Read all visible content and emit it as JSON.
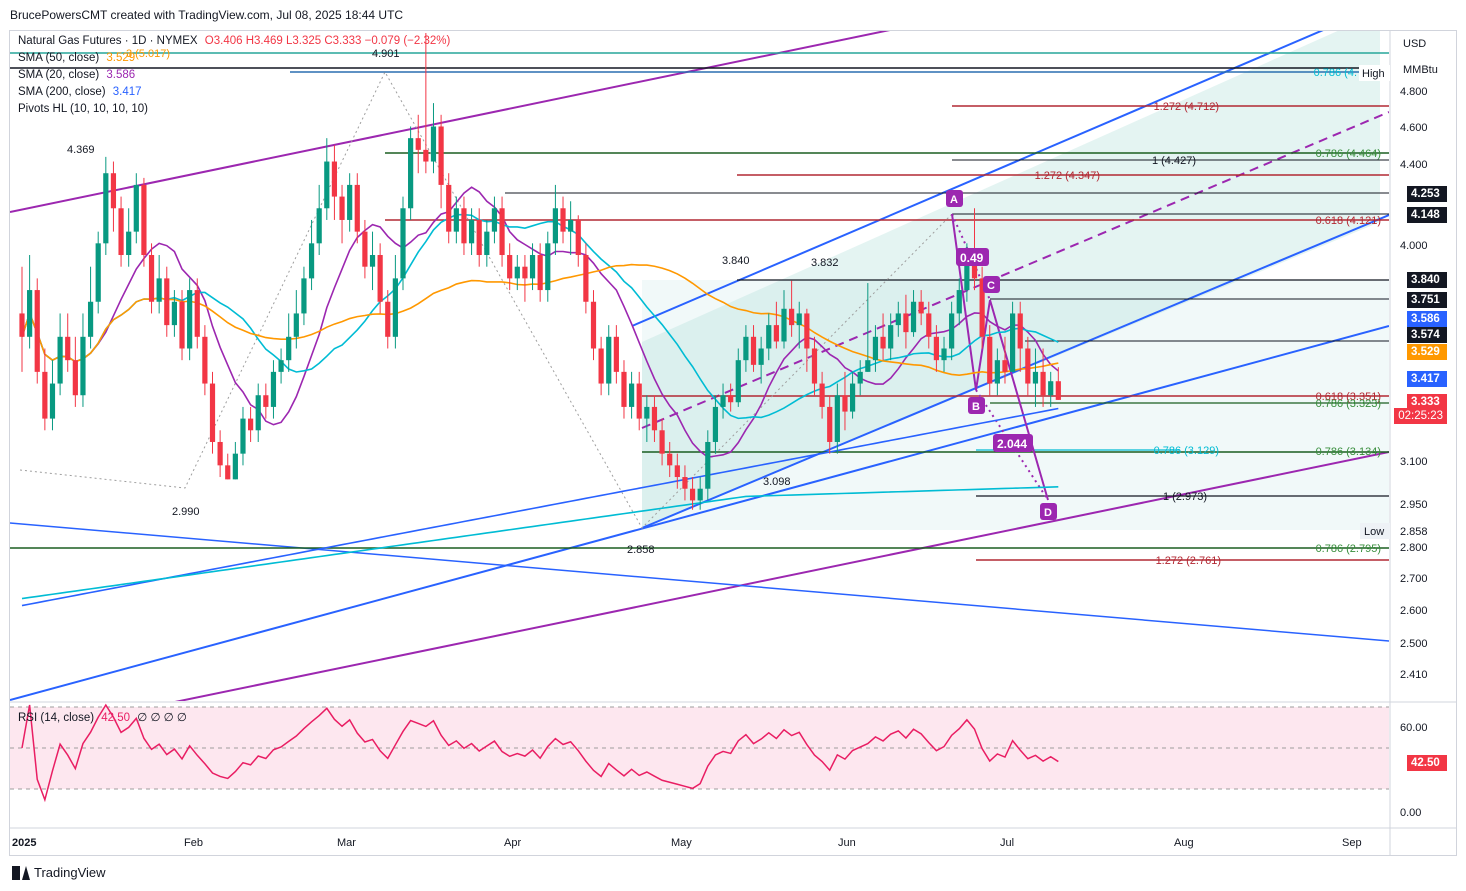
{
  "header": {
    "caption": "BrucePowersCMT created with TradingView.com, Jul 08, 2025 18:44 UTC"
  },
  "legend": {
    "title": "Natural Gas Futures · 1D · NYMEX",
    "ohlc": "O3.406  H3.469  L3.325  C3.333  −0.079 (−2.32%)",
    "sma50_label": "SMA (50, close)",
    "sma50_value": "3.529",
    "sma20_label": "SMA (20, close)",
    "sma20_value": "3.586",
    "sma200_label": "SMA (200, close)",
    "sma200_value": "3.417",
    "pivots_label": "Pivots HL (10, 10, 10, 10)",
    "rsi_label": "RSI (14, close)",
    "rsi_value": "42.50",
    "rsi_extras": "∅ ∅ ∅ ∅"
  },
  "axis": {
    "currency": "USD",
    "unit": "MMBtu",
    "price_ticks": [
      "4.800",
      "4.600",
      "4.400",
      "4.000",
      "3.100",
      "2.950",
      "2.800",
      "2.700",
      "2.600",
      "2.500",
      "2.410"
    ],
    "rsi_ticks": [
      "60.00",
      "0.00"
    ],
    "months": [
      "2025",
      "Feb",
      "Mar",
      "Apr",
      "May",
      "Jun",
      "Jul",
      "Aug",
      "Sep"
    ]
  },
  "tags": [
    {
      "text": "4.253",
      "bg": "#131722"
    },
    {
      "text": "4.148",
      "bg": "#131722"
    },
    {
      "text": "3.840",
      "bg": "#131722"
    },
    {
      "text": "3.751",
      "bg": "#131722"
    },
    {
      "text": "3.586",
      "bg": "#2962ff"
    },
    {
      "text": "3.574",
      "bg": "#131722"
    },
    {
      "text": "3.529",
      "bg": "#ff9800"
    },
    {
      "text": "3.417",
      "bg": "#2962ff"
    },
    {
      "text": "3.333",
      "bg": "#f23645"
    },
    {
      "text": "02:25:23",
      "bg": "#f23645"
    },
    {
      "text": "42.50",
      "bg": "#f23645"
    }
  ],
  "labels": {
    "high_tag": "High",
    "low_tag": "Low",
    "low_value": "2.858",
    "peak_mar": "4.901",
    "peak_jan": "4.369",
    "low_feb": "2.990",
    "low_apr": "2.858",
    "peak_may": "3.840",
    "peak_jun": "3.832",
    "low_may": "3.098",
    "point_a": "A",
    "point_b": "B",
    "point_c": "C",
    "point_d": "D",
    "ratio_bc": "0.49",
    "ratio_cd": "2.044"
  },
  "fib_levels": [
    {
      "text": "1.272 (4.712)",
      "color": "#b22833"
    },
    {
      "text": "0.786 (4.464)",
      "color": "#388e3c"
    },
    {
      "text": "1 (4.427)",
      "color": "#131722"
    },
    {
      "text": "1.272 (4.347)",
      "color": "#b22833"
    },
    {
      "text": "0.618 (4.121)",
      "color": "#b22833"
    },
    {
      "text": "0.618 (3.351)",
      "color": "#b22833"
    },
    {
      "text": "0.786 (3.323)",
      "color": "#388e3c"
    },
    {
      "text": "0.786 (3.129)",
      "color": "#00bcd4"
    },
    {
      "text": "0.786 (3.134)",
      "color": "#388e3c"
    },
    {
      "text": "1 (2.973)",
      "color": "#131722"
    },
    {
      "text": "0.786 (2.795)",
      "color": "#388e3c"
    },
    {
      "text": "1.272 (2.761)",
      "color": "#b22833"
    },
    {
      "text": "0.786 (4.",
      "color": "#00bcd4"
    },
    {
      "text": "3 (5.017)",
      "color": "#ff9800"
    }
  ],
  "colors": {
    "up": "#089981",
    "down": "#f23645",
    "sma20": "#00bcd4",
    "sma50": "#ff9800",
    "sma200": "#2962ff",
    "pivot": "#9c27b0",
    "channel": "#2962ff",
    "rsi": "#e91e63"
  },
  "chart_data": {
    "type": "candlestick",
    "symbol": "Natural Gas Futures · 1D · NYMEX",
    "ohlc_last": {
      "open": 3.406,
      "high": 3.469,
      "low": 3.325,
      "close": 3.333,
      "change": -0.079,
      "change_pct": -2.32
    },
    "x_range": [
      "2025-01-02",
      "2025-09-30"
    ],
    "y_range": [
      2.41,
      5.0
    ],
    "candles": [
      [
        3.7,
        3.6,
        3.9,
        3.45
      ],
      [
        3.6,
        3.8,
        3.95,
        3.55
      ],
      [
        3.8,
        3.45,
        3.85,
        3.4
      ],
      [
        3.45,
        3.25,
        3.55,
        3.2
      ],
      [
        3.25,
        3.4,
        3.5,
        3.2
      ],
      [
        3.4,
        3.6,
        3.7,
        3.35
      ],
      [
        3.6,
        3.5,
        3.7,
        3.45
      ],
      [
        3.5,
        3.35,
        3.6,
        3.3
      ],
      [
        3.35,
        3.6,
        3.7,
        3.3
      ],
      [
        3.6,
        3.75,
        3.9,
        3.55
      ],
      [
        3.75,
        4.0,
        4.05,
        3.7
      ],
      [
        4.0,
        4.3,
        4.37,
        3.95
      ],
      [
        4.3,
        4.15,
        4.35,
        4.05
      ],
      [
        4.15,
        3.95,
        4.2,
        3.9
      ],
      [
        3.95,
        4.05,
        4.15,
        3.9
      ],
      [
        4.05,
        4.25,
        4.3,
        4.0
      ],
      [
        4.25,
        3.95,
        4.28,
        3.9
      ],
      [
        3.95,
        3.75,
        4.0,
        3.7
      ],
      [
        3.75,
        3.85,
        3.95,
        3.7
      ],
      [
        3.85,
        3.65,
        3.9,
        3.6
      ],
      [
        3.65,
        3.75,
        3.8,
        3.6
      ],
      [
        3.75,
        3.55,
        3.8,
        3.5
      ],
      [
        3.55,
        3.8,
        3.85,
        3.5
      ],
      [
        3.8,
        3.6,
        3.85,
        3.55
      ],
      [
        3.6,
        3.4,
        3.65,
        3.35
      ],
      [
        3.4,
        3.15,
        3.45,
        3.1
      ],
      [
        3.15,
        3.05,
        3.2,
        3.0
      ],
      [
        3.05,
        2.99,
        3.1,
        2.99
      ],
      [
        2.99,
        3.1,
        3.15,
        2.99
      ],
      [
        3.1,
        3.25,
        3.3,
        3.05
      ],
      [
        3.25,
        3.2,
        3.3,
        3.15
      ],
      [
        3.2,
        3.35,
        3.4,
        3.15
      ],
      [
        3.35,
        3.3,
        3.4,
        3.25
      ],
      [
        3.3,
        3.45,
        3.5,
        3.25
      ],
      [
        3.45,
        3.5,
        3.55,
        3.4
      ],
      [
        3.5,
        3.6,
        3.7,
        3.45
      ],
      [
        3.6,
        3.7,
        3.8,
        3.55
      ],
      [
        3.7,
        3.85,
        3.9,
        3.65
      ],
      [
        3.85,
        4.0,
        4.1,
        3.8
      ],
      [
        4.0,
        4.15,
        4.25,
        3.95
      ],
      [
        4.15,
        4.35,
        4.45,
        4.1
      ],
      [
        4.35,
        4.2,
        4.42,
        4.1
      ],
      [
        4.2,
        4.1,
        4.25,
        4.0
      ],
      [
        4.1,
        4.25,
        4.3,
        4.05
      ],
      [
        4.25,
        4.05,
        4.3,
        4.0
      ],
      [
        4.05,
        3.9,
        4.1,
        3.85
      ],
      [
        3.9,
        3.95,
        4.05,
        3.8
      ],
      [
        3.95,
        3.75,
        4.0,
        3.7
      ],
      [
        3.75,
        3.6,
        3.8,
        3.55
      ],
      [
        3.6,
        3.85,
        3.95,
        3.55
      ],
      [
        3.85,
        4.15,
        4.2,
        3.8
      ],
      [
        4.15,
        4.45,
        4.5,
        4.1
      ],
      [
        4.45,
        4.4,
        4.55,
        4.3
      ],
      [
        4.4,
        4.35,
        4.9,
        4.3
      ],
      [
        4.35,
        4.5,
        4.6,
        4.3
      ],
      [
        4.5,
        4.25,
        4.55,
        4.15
      ],
      [
        4.25,
        4.05,
        4.3,
        4.0
      ],
      [
        4.05,
        4.15,
        4.2,
        4.0
      ],
      [
        4.15,
        4.0,
        4.2,
        3.95
      ],
      [
        4.0,
        4.1,
        4.15,
        3.95
      ],
      [
        4.1,
        3.95,
        4.15,
        3.9
      ],
      [
        3.95,
        4.05,
        4.1,
        3.9
      ],
      [
        4.05,
        4.15,
        4.2,
        4.0
      ],
      [
        4.15,
        3.95,
        4.2,
        3.9
      ],
      [
        3.95,
        3.85,
        4.0,
        3.8
      ],
      [
        3.85,
        3.9,
        3.95,
        3.8
      ],
      [
        3.9,
        3.85,
        3.95,
        3.75
      ],
      [
        3.85,
        3.95,
        4.0,
        3.8
      ],
      [
        3.95,
        3.8,
        4.0,
        3.75
      ],
      [
        3.8,
        4.0,
        4.05,
        3.75
      ],
      [
        4.0,
        4.15,
        4.25,
        3.95
      ],
      [
        4.15,
        4.05,
        4.2,
        4.0
      ],
      [
        4.05,
        4.1,
        4.18,
        3.95
      ],
      [
        4.1,
        3.95,
        4.12,
        3.9
      ],
      [
        3.95,
        3.75,
        4.0,
        3.7
      ],
      [
        3.75,
        3.55,
        3.8,
        3.5
      ],
      [
        3.55,
        3.4,
        3.6,
        3.35
      ],
      [
        3.4,
        3.6,
        3.65,
        3.35
      ],
      [
        3.6,
        3.45,
        3.65,
        3.4
      ],
      [
        3.45,
        3.3,
        3.5,
        3.25
      ],
      [
        3.3,
        3.4,
        3.45,
        3.25
      ],
      [
        3.4,
        3.25,
        3.45,
        3.2
      ],
      [
        3.25,
        3.3,
        3.35,
        3.15
      ],
      [
        3.3,
        3.2,
        3.35,
        3.15
      ],
      [
        3.2,
        3.1,
        3.25,
        3.05
      ],
      [
        3.1,
        3.05,
        3.15,
        3.0
      ],
      [
        3.05,
        3.0,
        3.1,
        2.95
      ],
      [
        3.0,
        2.95,
        3.05,
        2.9
      ],
      [
        2.95,
        2.9,
        3.0,
        2.86
      ],
      [
        2.9,
        2.95,
        3.0,
        2.86
      ],
      [
        2.95,
        3.15,
        3.2,
        2.9
      ],
      [
        3.15,
        3.3,
        3.35,
        3.1
      ],
      [
        3.3,
        3.35,
        3.4,
        3.25
      ],
      [
        3.35,
        3.32,
        3.4,
        3.28
      ],
      [
        3.32,
        3.5,
        3.55,
        3.3
      ],
      [
        3.5,
        3.6,
        3.65,
        3.45
      ],
      [
        3.6,
        3.48,
        3.65,
        3.45
      ],
      [
        3.48,
        3.55,
        3.6,
        3.4
      ],
      [
        3.55,
        3.65,
        3.7,
        3.5
      ],
      [
        3.65,
        3.58,
        3.75,
        3.55
      ],
      [
        3.58,
        3.72,
        3.8,
        3.55
      ],
      [
        3.72,
        3.65,
        3.84,
        3.6
      ],
      [
        3.65,
        3.7,
        3.75,
        3.55
      ],
      [
        3.7,
        3.55,
        3.72,
        3.45
      ],
      [
        3.55,
        3.4,
        3.6,
        3.35
      ],
      [
        3.4,
        3.3,
        3.45,
        3.25
      ],
      [
        3.3,
        3.15,
        3.35,
        3.1
      ],
      [
        3.15,
        3.35,
        3.4,
        3.1
      ],
      [
        3.35,
        3.28,
        3.45,
        3.2
      ],
      [
        3.28,
        3.4,
        3.45,
        3.25
      ],
      [
        3.4,
        3.45,
        3.5,
        3.35
      ],
      [
        3.45,
        3.5,
        3.83,
        3.45
      ],
      [
        3.5,
        3.6,
        3.65,
        3.45
      ],
      [
        3.6,
        3.55,
        3.7,
        3.5
      ],
      [
        3.55,
        3.65,
        3.7,
        3.5
      ],
      [
        3.65,
        3.7,
        3.75,
        3.6
      ],
      [
        3.7,
        3.62,
        3.78,
        3.55
      ],
      [
        3.62,
        3.75,
        3.8,
        3.6
      ],
      [
        3.75,
        3.7,
        3.8,
        3.65
      ],
      [
        3.7,
        3.6,
        3.75,
        3.55
      ],
      [
        3.6,
        3.5,
        3.65,
        3.45
      ],
      [
        3.5,
        3.55,
        3.6,
        3.45
      ],
      [
        3.55,
        3.7,
        3.75,
        3.5
      ],
      [
        3.7,
        3.8,
        3.85,
        3.65
      ],
      [
        3.8,
        3.95,
        4.0,
        3.75
      ],
      [
        3.95,
        3.85,
        4.15,
        3.8
      ],
      [
        3.85,
        3.6,
        3.9,
        3.55
      ],
      [
        3.6,
        3.4,
        3.65,
        3.35
      ],
      [
        3.4,
        3.5,
        3.55,
        3.35
      ],
      [
        3.5,
        3.45,
        3.6,
        3.4
      ],
      [
        3.45,
        3.7,
        3.75,
        3.45
      ],
      [
        3.7,
        3.55,
        3.75,
        3.45
      ],
      [
        3.55,
        3.4,
        3.6,
        3.35
      ],
      [
        3.4,
        3.45,
        3.55,
        3.3
      ],
      [
        3.45,
        3.35,
        3.55,
        3.3
      ],
      [
        3.35,
        3.41,
        3.45,
        3.3
      ],
      [
        3.41,
        3.33,
        3.47,
        3.33
      ]
    ],
    "annotations": [
      "4.901",
      "4.369",
      "2.990",
      "2.858",
      "3.840",
      "3.832",
      "3.098",
      "A",
      "B",
      "C",
      "D",
      "0.49",
      "2.044"
    ],
    "rsi": {
      "label": "RSI (14, close)",
      "last": 42.5,
      "upper": 70,
      "lower": 30
    }
  }
}
